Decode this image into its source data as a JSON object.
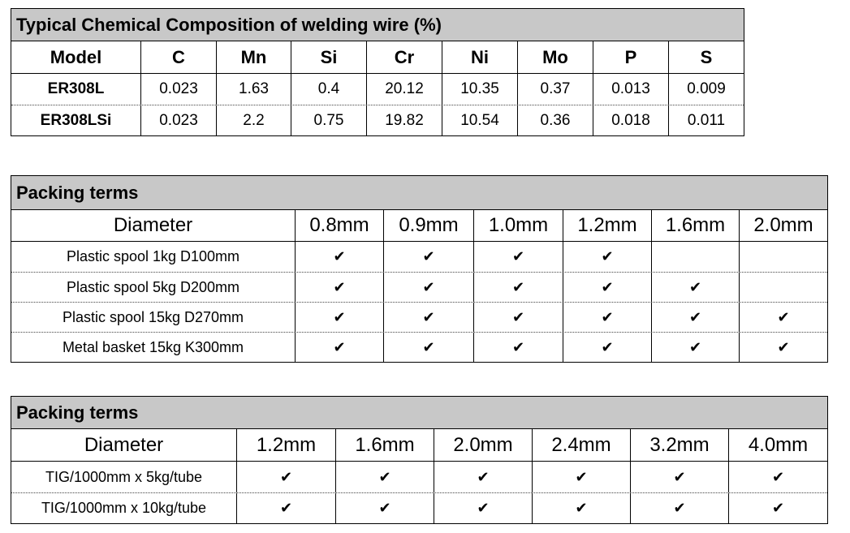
{
  "table1": {
    "title": "Typical Chemical Composition of welding wire (%)",
    "header": [
      "Model",
      "C",
      "Mn",
      "Si",
      "Cr",
      "Ni",
      "Mo",
      "P",
      "S"
    ],
    "rows": [
      [
        "ER308L",
        "0.023",
        "1.63",
        "0.4",
        "20.12",
        "10.35",
        "0.37",
        "0.013",
        "0.009"
      ],
      [
        "ER308LSi",
        "0.023",
        "2.2",
        "0.75",
        "19.82",
        "10.54",
        "0.36",
        "0.018",
        "0.011"
      ]
    ]
  },
  "table2": {
    "title": "Packing terms",
    "header": [
      "Diameter",
      "0.8mm",
      "0.9mm",
      "1.0mm",
      "1.2mm",
      "1.6mm",
      "2.0mm"
    ],
    "rows": [
      [
        "Plastic spool 1kg D100mm",
        "✔",
        "✔",
        "✔",
        "✔",
        null,
        null
      ],
      [
        "Plastic spool 5kg D200mm",
        "✔",
        "✔",
        "✔",
        "✔",
        "✔",
        null
      ],
      [
        "Plastic spool 15kg D270mm",
        "✔",
        "✔",
        "✔",
        "✔",
        "✔",
        "✔"
      ],
      [
        "Metal basket 15kg K300mm",
        "✔",
        "✔",
        "✔",
        "✔",
        "✔",
        "✔"
      ]
    ]
  },
  "table3": {
    "title": "Packing terms",
    "header": [
      "Diameter",
      "1.2mm",
      "1.6mm",
      "2.0mm",
      "2.4mm",
      "3.2mm",
      "4.0mm"
    ],
    "rows": [
      [
        "TIG/1000mm x 5kg/tube",
        "✔",
        "✔",
        "✔",
        "✔",
        "✔",
        "✔"
      ],
      [
        "TIG/1000mm x 10kg/tube",
        "✔",
        "✔",
        "✔",
        "✔",
        "✔",
        "✔"
      ]
    ]
  }
}
